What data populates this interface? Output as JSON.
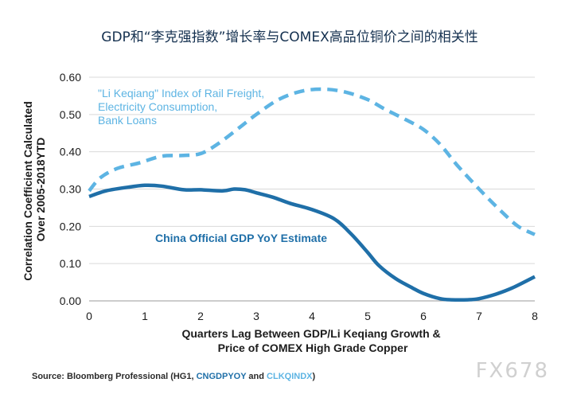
{
  "chart_data": {
    "type": "line",
    "title": "GDP和“李克强指数”增长率与COMEX高品位铜价之间的相关性",
    "xlabel": [
      "Quarters Lag Between GDP/Li Keqiang Growth &",
      "Price of COMEX High Grade Copper"
    ],
    "ylabel": [
      "Correlation Coefficient Calculated",
      "Over 2005-2018YTD"
    ],
    "xlim": [
      0,
      8
    ],
    "ylim": [
      0,
      0.6
    ],
    "x_ticks": [
      "0",
      "1",
      "2",
      "3",
      "4",
      "5",
      "6",
      "7",
      "8"
    ],
    "y_ticks": [
      "0.00",
      "0.10",
      "0.20",
      "0.30",
      "0.40",
      "0.50",
      "0.60"
    ],
    "grid": true,
    "series": [
      {
        "name": "China Official GDP YoY Estimate",
        "label_lines": [
          "China Official GDP YoY Estimate"
        ],
        "color": "#1f6fa8",
        "style": "solid",
        "points": [
          [
            0,
            0.28
          ],
          [
            0.3,
            0.295
          ],
          [
            0.7,
            0.305
          ],
          [
            1,
            0.31
          ],
          [
            1.3,
            0.308
          ],
          [
            1.7,
            0.298
          ],
          [
            2,
            0.298
          ],
          [
            2.4,
            0.295
          ],
          [
            2.6,
            0.3
          ],
          [
            2.8,
            0.298
          ],
          [
            3,
            0.29
          ],
          [
            3.3,
            0.278
          ],
          [
            3.6,
            0.262
          ],
          [
            4,
            0.245
          ],
          [
            4.4,
            0.22
          ],
          [
            4.7,
            0.18
          ],
          [
            5,
            0.13
          ],
          [
            5.2,
            0.095
          ],
          [
            5.5,
            0.06
          ],
          [
            5.8,
            0.035
          ],
          [
            6,
            0.02
          ],
          [
            6.3,
            0.006
          ],
          [
            6.5,
            0.003
          ],
          [
            6.8,
            0.003
          ],
          [
            7,
            0.006
          ],
          [
            7.3,
            0.018
          ],
          [
            7.6,
            0.035
          ],
          [
            8,
            0.065
          ]
        ]
      },
      {
        "name": "\"Li Keqiang\" Index of Rail Freight, Electricity Consumption, Bank Loans",
        "label_lines": [
          "\"Li Keqiang\" Index of Rail Freight,",
          "Electricity Consumption,",
          "Bank Loans"
        ],
        "color": "#5db4e3",
        "style": "dashed",
        "points": [
          [
            0,
            0.295
          ],
          [
            0.2,
            0.33
          ],
          [
            0.5,
            0.355
          ],
          [
            0.9,
            0.37
          ],
          [
            1.3,
            0.388
          ],
          [
            1.7,
            0.39
          ],
          [
            2,
            0.395
          ],
          [
            2.3,
            0.42
          ],
          [
            2.7,
            0.465
          ],
          [
            3,
            0.5
          ],
          [
            3.4,
            0.54
          ],
          [
            3.8,
            0.562
          ],
          [
            4.2,
            0.568
          ],
          [
            4.6,
            0.56
          ],
          [
            5,
            0.54
          ],
          [
            5.3,
            0.515
          ],
          [
            5.7,
            0.485
          ],
          [
            6,
            0.46
          ],
          [
            6.3,
            0.42
          ],
          [
            6.6,
            0.365
          ],
          [
            7,
            0.3
          ],
          [
            7.4,
            0.24
          ],
          [
            7.7,
            0.2
          ],
          [
            8,
            0.178
          ]
        ]
      }
    ]
  },
  "source": {
    "prefix": "Source: Bloomberg Professional (HG1, ",
    "ticker1": "CNGDPYOY",
    "middle": " and ",
    "ticker2": "CLKQINDX",
    "suffix": ")",
    "ticker1_color": "#1f6fa8",
    "ticker2_color": "#5db4e3"
  },
  "watermark": "FX678"
}
